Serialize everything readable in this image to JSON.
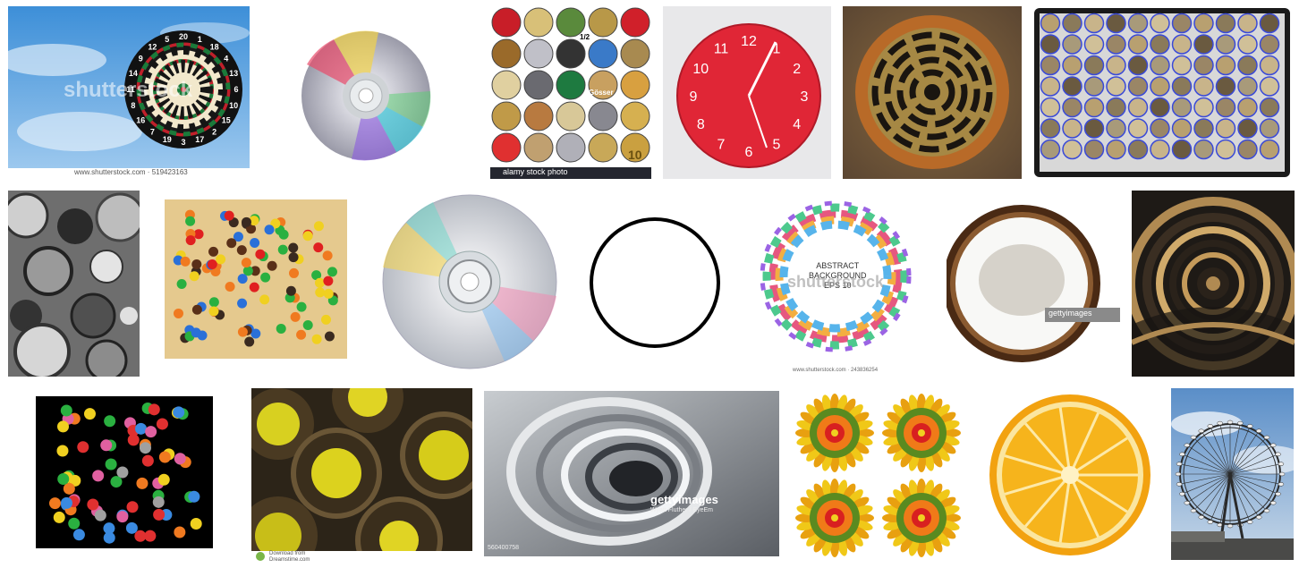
{
  "results": [
    {
      "id": "dartboard",
      "watermark": "shutterstock",
      "caption": "www.shutterstock.com · 519423163",
      "numbers": [
        "20",
        "1",
        "18",
        "4",
        "13",
        "6",
        "10",
        "15",
        "2",
        "17",
        "3",
        "19",
        "7",
        "16",
        "8",
        "11",
        "14",
        "9",
        "12",
        "5"
      ]
    },
    {
      "id": "cd-disc-1"
    },
    {
      "id": "coins-collage",
      "caption": "alamy stock photo",
      "labels": [
        "1/2",
        "Gösser",
        "10"
      ]
    },
    {
      "id": "red-wall-clock",
      "numbers": [
        "12",
        "1",
        "2",
        "3",
        "4",
        "5",
        "6",
        "7",
        "8",
        "9",
        "10",
        "11"
      ]
    },
    {
      "id": "rusty-drain-grate"
    },
    {
      "id": "coin-tray"
    },
    {
      "id": "bw-cans-and-lids"
    },
    {
      "id": "candy-on-wood"
    },
    {
      "id": "cd-disc-2"
    },
    {
      "id": "black-ring-outline"
    },
    {
      "id": "abstract-swirl-ring",
      "title_lines": [
        "ABSTRACT",
        "BACKGROUND",
        "EPS 10"
      ],
      "watermark": "shutterstock",
      "caption": "www.shutterstock.com · 243836254"
    },
    {
      "id": "halved-coconut",
      "watermark": "gettyimages"
    },
    {
      "id": "gold-arches-pattern"
    },
    {
      "id": "colored-dots-on-black"
    },
    {
      "id": "yellow-speakers",
      "caption_lines": [
        "Download from",
        "Dreamstime.com"
      ]
    },
    {
      "id": "metal-rings-closeup",
      "watermark": "gettyimages",
      "watermark_sub": "Wyatt Fluther / EyeEm",
      "id_text": "560400758"
    },
    {
      "id": "sunflower-mandalas"
    },
    {
      "id": "orange-slice"
    },
    {
      "id": "ferris-wheel"
    }
  ]
}
